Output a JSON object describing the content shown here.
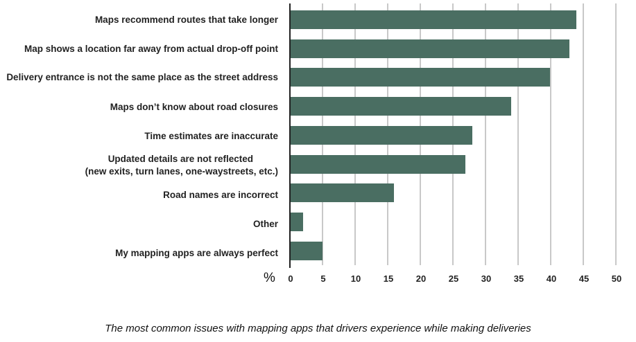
{
  "chart_data": {
    "type": "bar",
    "orientation": "horizontal",
    "title": "",
    "caption": "The most common issues with mapping apps that drivers experience while making deliveries",
    "xlabel": "%",
    "ylabel": "",
    "xlim": [
      0,
      50
    ],
    "xticks": [
      "0",
      "5",
      "10",
      "15",
      "20",
      "25",
      "30",
      "35",
      "40",
      "45",
      "50"
    ],
    "grid": true,
    "bar_color": "#4a6e62",
    "categories": [
      "Maps recommend routes that take longer",
      "Map shows a location far away from actual drop-off point",
      "Delivery entrance is not the same place as the street address",
      "Maps don’t know about road closures",
      "Time estimates are inaccurate",
      "Updated details are not reflected\n(new exits, turn lanes, one-waystreets, etc.)",
      "Road names are incorrect",
      "Other",
      "My mapping apps are always perfect"
    ],
    "values": [
      44,
      43,
      40,
      34,
      28,
      27,
      16,
      2,
      5
    ]
  },
  "labels": {
    "l0": "Maps recommend routes that take longer",
    "l1": "Map shows a location far away from actual drop-off point",
    "l2": "Delivery entrance is not the same place as the street address",
    "l3": "Maps don’t know about road closures",
    "l4": "Time estimates are inaccurate",
    "l5a": "Updated details are not reflected",
    "l5b": "(new exits, turn lanes, one-waystreets, etc.)",
    "l6": "Road names are incorrect",
    "l7": "Other",
    "l8": "My mapping apps are always perfect"
  },
  "axis": {
    "unit": "%",
    "ticks": [
      "0",
      "5",
      "10",
      "15",
      "20",
      "25",
      "30",
      "35",
      "40",
      "45",
      "50"
    ]
  },
  "caption": "The most common issues with mapping apps that drivers experience while making deliveries"
}
